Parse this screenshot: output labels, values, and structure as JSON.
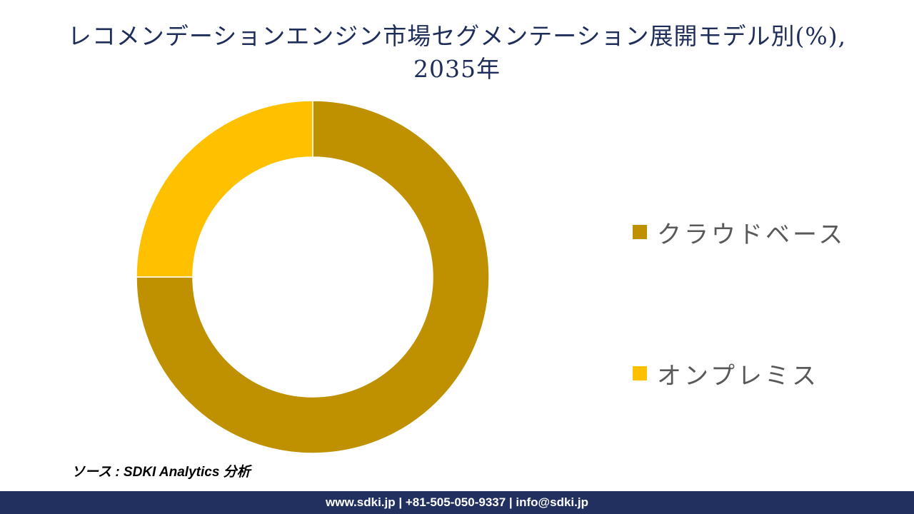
{
  "title": {
    "line1": "レコメンデーションエンジン市場セグメンテーション展開モデル別(%),",
    "line2": "2035年"
  },
  "chart_data": {
    "type": "pie",
    "variant": "donut",
    "categories": [
      "クラウドベース",
      "オンプレミス"
    ],
    "values": [
      75,
      25
    ],
    "colors": [
      "#bf9000",
      "#ffc000"
    ],
    "legend_position": "right"
  },
  "source": "ソース : SDKI Analytics 分析",
  "footer": "www.sdki.jp | +81-505-050-9337 | info@sdki.jp"
}
